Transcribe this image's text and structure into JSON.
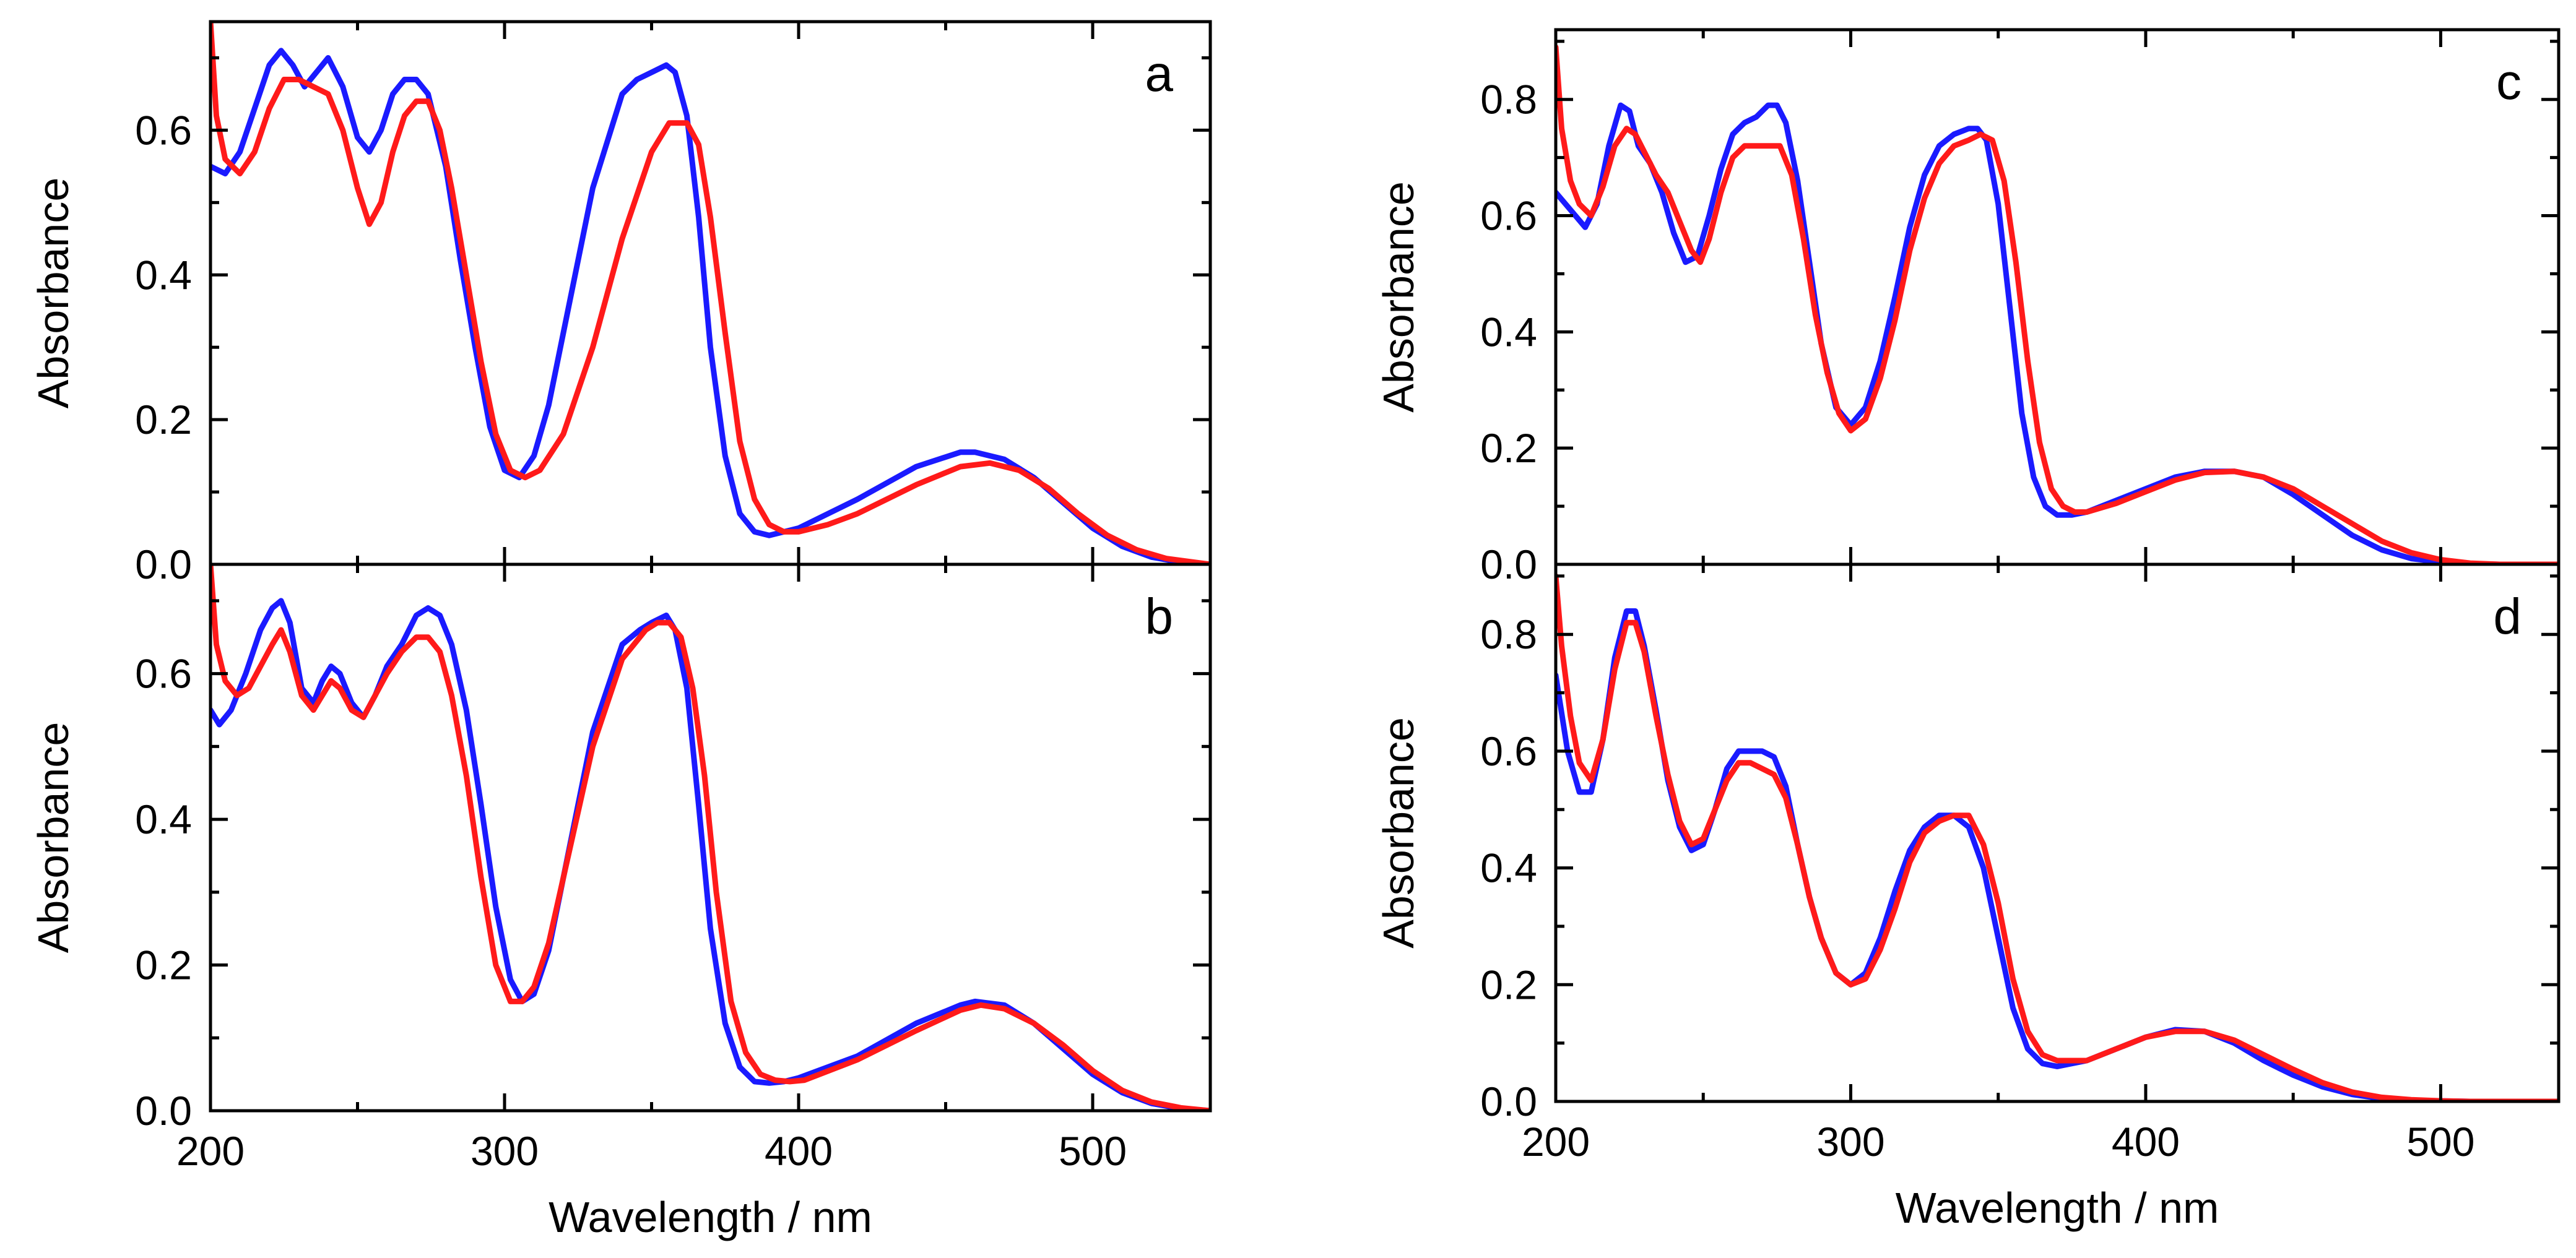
{
  "chart_data": [
    {
      "type": "line",
      "panel_label": "a",
      "xlabel": "",
      "ylabel": "Absorbance",
      "xlim": [
        200,
        540
      ],
      "ylim": [
        0,
        0.75
      ],
      "x_ticks": [
        200,
        300,
        400,
        500
      ],
      "x_tick_labels": [],
      "y_ticks": [
        0.0,
        0.2,
        0.4,
        0.6
      ],
      "y_tick_labels": [
        "0.0",
        "0.2",
        "0.4",
        "0.6"
      ],
      "series": [
        {
          "name": "blue",
          "color": "#1a1aff",
          "x": [
            200,
            205,
            210,
            215,
            220,
            224,
            228,
            232,
            236,
            240,
            245,
            250,
            254,
            258,
            262,
            266,
            270,
            274,
            280,
            285,
            290,
            295,
            300,
            305,
            310,
            315,
            320,
            330,
            340,
            345,
            350,
            355,
            358,
            362,
            366,
            370,
            375,
            380,
            385,
            390,
            395,
            400,
            420,
            440,
            455,
            460,
            470,
            480,
            490,
            500,
            510,
            520,
            530,
            540
          ],
          "y": [
            0.55,
            0.54,
            0.57,
            0.63,
            0.69,
            0.71,
            0.69,
            0.66,
            0.68,
            0.7,
            0.66,
            0.59,
            0.57,
            0.6,
            0.65,
            0.67,
            0.67,
            0.65,
            0.55,
            0.42,
            0.3,
            0.19,
            0.13,
            0.12,
            0.15,
            0.22,
            0.32,
            0.52,
            0.65,
            0.67,
            0.68,
            0.69,
            0.68,
            0.62,
            0.48,
            0.3,
            0.15,
            0.07,
            0.045,
            0.04,
            0.045,
            0.05,
            0.09,
            0.135,
            0.155,
            0.155,
            0.145,
            0.12,
            0.085,
            0.05,
            0.025,
            0.01,
            0.003,
            0.0
          ]
        },
        {
          "name": "red",
          "color": "#ff1a1a",
          "x": [
            200,
            202,
            205,
            210,
            215,
            220,
            225,
            230,
            235,
            240,
            245,
            250,
            254,
            258,
            262,
            266,
            270,
            274,
            278,
            282,
            287,
            292,
            297,
            302,
            307,
            312,
            320,
            330,
            340,
            350,
            356,
            362,
            366,
            370,
            375,
            380,
            385,
            390,
            395,
            400,
            410,
            420,
            440,
            455,
            465,
            475,
            485,
            495,
            505,
            515,
            525,
            540
          ],
          "y": [
            0.75,
            0.62,
            0.56,
            0.54,
            0.57,
            0.63,
            0.67,
            0.67,
            0.66,
            0.65,
            0.6,
            0.52,
            0.47,
            0.5,
            0.57,
            0.62,
            0.64,
            0.64,
            0.6,
            0.52,
            0.4,
            0.28,
            0.18,
            0.13,
            0.12,
            0.13,
            0.18,
            0.3,
            0.45,
            0.57,
            0.61,
            0.61,
            0.58,
            0.48,
            0.32,
            0.17,
            0.09,
            0.055,
            0.045,
            0.045,
            0.055,
            0.07,
            0.11,
            0.135,
            0.14,
            0.13,
            0.105,
            0.07,
            0.04,
            0.02,
            0.008,
            0.0
          ]
        }
      ]
    },
    {
      "type": "line",
      "panel_label": "b",
      "xlabel": "Wavelength / nm",
      "ylabel": "Absorbance",
      "xlim": [
        200,
        540
      ],
      "ylim": [
        0,
        0.75
      ],
      "x_ticks": [
        200,
        300,
        400,
        500
      ],
      "x_tick_labels": [
        "200",
        "300",
        "400",
        "500"
      ],
      "y_ticks": [
        0.0,
        0.2,
        0.4,
        0.6
      ],
      "y_tick_labels": [
        "0.0",
        "0.2",
        "0.4",
        "0.6"
      ],
      "series": [
        {
          "name": "blue",
          "color": "#1a1aff",
          "x": [
            200,
            203,
            207,
            212,
            217,
            221,
            224,
            227,
            231,
            235,
            238,
            241,
            244,
            248,
            252,
            256,
            260,
            265,
            270,
            274,
            278,
            282,
            287,
            292,
            297,
            302,
            306,
            310,
            315,
            320,
            330,
            340,
            346,
            350,
            355,
            358,
            362,
            366,
            370,
            375,
            380,
            385,
            390,
            395,
            400,
            420,
            440,
            455,
            460,
            470,
            480,
            490,
            500,
            510,
            520,
            530,
            540
          ],
          "y": [
            0.55,
            0.53,
            0.55,
            0.6,
            0.66,
            0.69,
            0.7,
            0.67,
            0.58,
            0.56,
            0.59,
            0.61,
            0.6,
            0.56,
            0.54,
            0.57,
            0.61,
            0.64,
            0.68,
            0.69,
            0.68,
            0.64,
            0.55,
            0.42,
            0.28,
            0.18,
            0.15,
            0.16,
            0.22,
            0.32,
            0.52,
            0.64,
            0.66,
            0.67,
            0.68,
            0.66,
            0.58,
            0.42,
            0.25,
            0.12,
            0.06,
            0.04,
            0.038,
            0.04,
            0.045,
            0.075,
            0.12,
            0.145,
            0.15,
            0.145,
            0.12,
            0.085,
            0.05,
            0.025,
            0.01,
            0.003,
            0.0
          ]
        },
        {
          "name": "red",
          "color": "#ff1a1a",
          "x": [
            200,
            202,
            205,
            209,
            213,
            217,
            221,
            224,
            227,
            231,
            235,
            238,
            241,
            244,
            248,
            252,
            256,
            260,
            265,
            270,
            274,
            278,
            282,
            287,
            292,
            297,
            302,
            306,
            310,
            315,
            320,
            330,
            340,
            348,
            352,
            356,
            360,
            364,
            368,
            372,
            377,
            382,
            387,
            392,
            397,
            402,
            420,
            440,
            455,
            462,
            470,
            480,
            490,
            500,
            510,
            520,
            530,
            540
          ],
          "y": [
            0.75,
            0.64,
            0.59,
            0.57,
            0.58,
            0.61,
            0.64,
            0.66,
            0.63,
            0.57,
            0.55,
            0.57,
            0.59,
            0.58,
            0.55,
            0.54,
            0.57,
            0.6,
            0.63,
            0.65,
            0.65,
            0.63,
            0.57,
            0.46,
            0.32,
            0.2,
            0.15,
            0.15,
            0.17,
            0.23,
            0.32,
            0.5,
            0.62,
            0.66,
            0.67,
            0.67,
            0.65,
            0.58,
            0.46,
            0.3,
            0.15,
            0.08,
            0.05,
            0.042,
            0.04,
            0.042,
            0.07,
            0.11,
            0.138,
            0.145,
            0.14,
            0.12,
            0.09,
            0.055,
            0.028,
            0.012,
            0.004,
            0.0
          ]
        }
      ]
    },
    {
      "type": "line",
      "panel_label": "c",
      "xlabel": "",
      "ylabel": "Absorbance",
      "xlim": [
        200,
        540
      ],
      "ylim": [
        0,
        0.92
      ],
      "x_ticks": [
        200,
        300,
        400,
        500
      ],
      "x_tick_labels": [],
      "y_ticks": [
        0.0,
        0.2,
        0.4,
        0.6,
        0.8
      ],
      "y_tick_labels": [
        "0.0",
        "0.2",
        "0.4",
        "0.6",
        "0.8"
      ],
      "series": [
        {
          "name": "blue",
          "color": "#1a1aff",
          "x": [
            200,
            205,
            210,
            214,
            218,
            222,
            225,
            228,
            232,
            236,
            240,
            244,
            248,
            252,
            256,
            260,
            264,
            268,
            272,
            275,
            278,
            282,
            286,
            290,
            295,
            300,
            305,
            310,
            315,
            320,
            325,
            330,
            335,
            340,
            343,
            346,
            350,
            354,
            358,
            362,
            366,
            370,
            375,
            380,
            390,
            400,
            410,
            420,
            430,
            440,
            450,
            460,
            470,
            480,
            490,
            500,
            510,
            520,
            540
          ],
          "y": [
            0.64,
            0.61,
            0.58,
            0.62,
            0.72,
            0.79,
            0.78,
            0.72,
            0.69,
            0.64,
            0.57,
            0.52,
            0.53,
            0.6,
            0.68,
            0.74,
            0.76,
            0.77,
            0.79,
            0.79,
            0.76,
            0.66,
            0.52,
            0.38,
            0.27,
            0.24,
            0.27,
            0.35,
            0.46,
            0.58,
            0.67,
            0.72,
            0.74,
            0.75,
            0.75,
            0.73,
            0.62,
            0.44,
            0.26,
            0.15,
            0.1,
            0.085,
            0.085,
            0.09,
            0.11,
            0.13,
            0.15,
            0.16,
            0.16,
            0.15,
            0.12,
            0.085,
            0.05,
            0.025,
            0.01,
            0.004,
            0.001,
            0.0,
            0.0
          ]
        },
        {
          "name": "red",
          "color": "#ff1a1a",
          "x": [
            200,
            202,
            205,
            208,
            212,
            216,
            220,
            224,
            227,
            230,
            234,
            238,
            242,
            246,
            249,
            252,
            256,
            260,
            264,
            268,
            272,
            276,
            280,
            284,
            288,
            292,
            296,
            300,
            305,
            310,
            315,
            320,
            325,
            330,
            335,
            340,
            344,
            348,
            352,
            356,
            360,
            364,
            368,
            372,
            376,
            380,
            390,
            400,
            410,
            420,
            430,
            440,
            450,
            460,
            470,
            480,
            490,
            500,
            510,
            520,
            540
          ],
          "y": [
            0.89,
            0.75,
            0.66,
            0.62,
            0.6,
            0.65,
            0.72,
            0.75,
            0.74,
            0.71,
            0.67,
            0.64,
            0.59,
            0.54,
            0.52,
            0.56,
            0.64,
            0.7,
            0.72,
            0.72,
            0.72,
            0.72,
            0.67,
            0.56,
            0.43,
            0.33,
            0.26,
            0.23,
            0.25,
            0.32,
            0.42,
            0.54,
            0.63,
            0.69,
            0.72,
            0.73,
            0.74,
            0.73,
            0.66,
            0.52,
            0.35,
            0.21,
            0.13,
            0.1,
            0.09,
            0.09,
            0.105,
            0.125,
            0.145,
            0.158,
            0.16,
            0.15,
            0.13,
            0.1,
            0.07,
            0.04,
            0.02,
            0.008,
            0.002,
            0.0,
            0.0
          ]
        }
      ]
    },
    {
      "type": "line",
      "panel_label": "d",
      "xlabel": "Wavelength / nm",
      "ylabel": "Absorbance",
      "xlim": [
        200,
        540
      ],
      "ylim": [
        0,
        0.92
      ],
      "x_ticks": [
        200,
        300,
        400,
        500
      ],
      "x_tick_labels": [
        "200",
        "300",
        "400",
        "500"
      ],
      "y_ticks": [
        0.0,
        0.2,
        0.4,
        0.6,
        0.8
      ],
      "y_tick_labels": [
        "0.0",
        "0.2",
        "0.4",
        "0.6",
        "0.8"
      ],
      "series": [
        {
          "name": "blue",
          "color": "#1a1aff",
          "x": [
            200,
            204,
            208,
            212,
            216,
            220,
            224,
            227,
            230,
            234,
            238,
            242,
            246,
            250,
            254,
            258,
            262,
            266,
            270,
            274,
            278,
            282,
            286,
            290,
            295,
            300,
            305,
            310,
            315,
            320,
            325,
            330,
            335,
            340,
            345,
            350,
            355,
            360,
            365,
            370,
            380,
            390,
            400,
            410,
            420,
            430,
            440,
            450,
            460,
            470,
            480,
            490,
            500,
            510,
            520,
            540
          ],
          "y": [
            0.73,
            0.6,
            0.53,
            0.53,
            0.62,
            0.76,
            0.84,
            0.84,
            0.78,
            0.67,
            0.55,
            0.47,
            0.43,
            0.44,
            0.5,
            0.57,
            0.6,
            0.6,
            0.6,
            0.59,
            0.54,
            0.44,
            0.35,
            0.28,
            0.22,
            0.2,
            0.22,
            0.28,
            0.36,
            0.43,
            0.47,
            0.49,
            0.49,
            0.47,
            0.4,
            0.28,
            0.16,
            0.09,
            0.065,
            0.06,
            0.07,
            0.09,
            0.11,
            0.123,
            0.12,
            0.1,
            0.07,
            0.045,
            0.025,
            0.012,
            0.005,
            0.002,
            0.001,
            0.0,
            0.0,
            0.0
          ]
        },
        {
          "name": "red",
          "color": "#ff1a1a",
          "x": [
            200,
            202,
            205,
            208,
            212,
            216,
            220,
            224,
            227,
            230,
            234,
            238,
            242,
            246,
            250,
            254,
            258,
            262,
            266,
            270,
            274,
            278,
            282,
            286,
            290,
            295,
            300,
            305,
            310,
            315,
            320,
            325,
            330,
            335,
            340,
            345,
            350,
            355,
            360,
            365,
            370,
            380,
            390,
            400,
            410,
            420,
            430,
            440,
            450,
            460,
            470,
            480,
            490,
            500,
            510,
            520,
            540
          ],
          "y": [
            0.9,
            0.78,
            0.66,
            0.58,
            0.55,
            0.62,
            0.74,
            0.82,
            0.82,
            0.77,
            0.66,
            0.56,
            0.48,
            0.44,
            0.45,
            0.5,
            0.55,
            0.58,
            0.58,
            0.57,
            0.56,
            0.52,
            0.44,
            0.35,
            0.28,
            0.22,
            0.2,
            0.21,
            0.26,
            0.33,
            0.41,
            0.46,
            0.48,
            0.49,
            0.49,
            0.44,
            0.34,
            0.21,
            0.12,
            0.08,
            0.07,
            0.07,
            0.09,
            0.11,
            0.12,
            0.12,
            0.105,
            0.08,
            0.055,
            0.032,
            0.016,
            0.007,
            0.003,
            0.001,
            0.0,
            0.0,
            0.0
          ]
        }
      ]
    }
  ]
}
